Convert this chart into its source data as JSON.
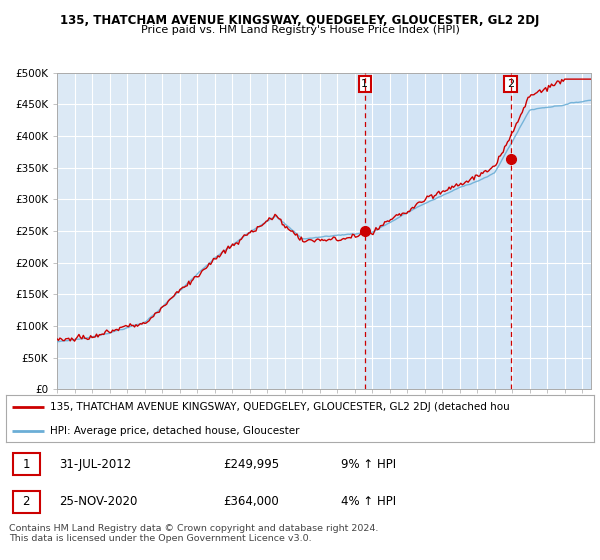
{
  "title": "135, THATCHAM AVENUE KINGSWAY, QUEDGELEY, GLOUCESTER, GL2 2DJ",
  "subtitle": "Price paid vs. HM Land Registry's House Price Index (HPI)",
  "plot_bg_color": "#dce9f5",
  "ylim": [
    0,
    500000
  ],
  "yticks": [
    0,
    50000,
    100000,
    150000,
    200000,
    250000,
    300000,
    350000,
    400000,
    450000,
    500000
  ],
  "ytick_labels": [
    "£0",
    "£50K",
    "£100K",
    "£150K",
    "£200K",
    "£250K",
    "£300K",
    "£350K",
    "£400K",
    "£450K",
    "£500K"
  ],
  "xlim": [
    1995,
    2025.5
  ],
  "sale1_date": 2012.58,
  "sale1_price": 249995,
  "sale2_date": 2020.92,
  "sale2_price": 364000,
  "legend_line1": "135, THATCHAM AVENUE KINGSWAY, QUEDGELEY, GLOUCESTER, GL2 2DJ (detached hou",
  "legend_line2": "HPI: Average price, detached house, Gloucester",
  "footer": "Contains HM Land Registry data © Crown copyright and database right 2024.\nThis data is licensed under the Open Government Licence v3.0.",
  "hpi_color": "#6baed6",
  "price_color": "#cc0000",
  "marker_color": "#cc0000",
  "shade_color": "#cce0f5"
}
